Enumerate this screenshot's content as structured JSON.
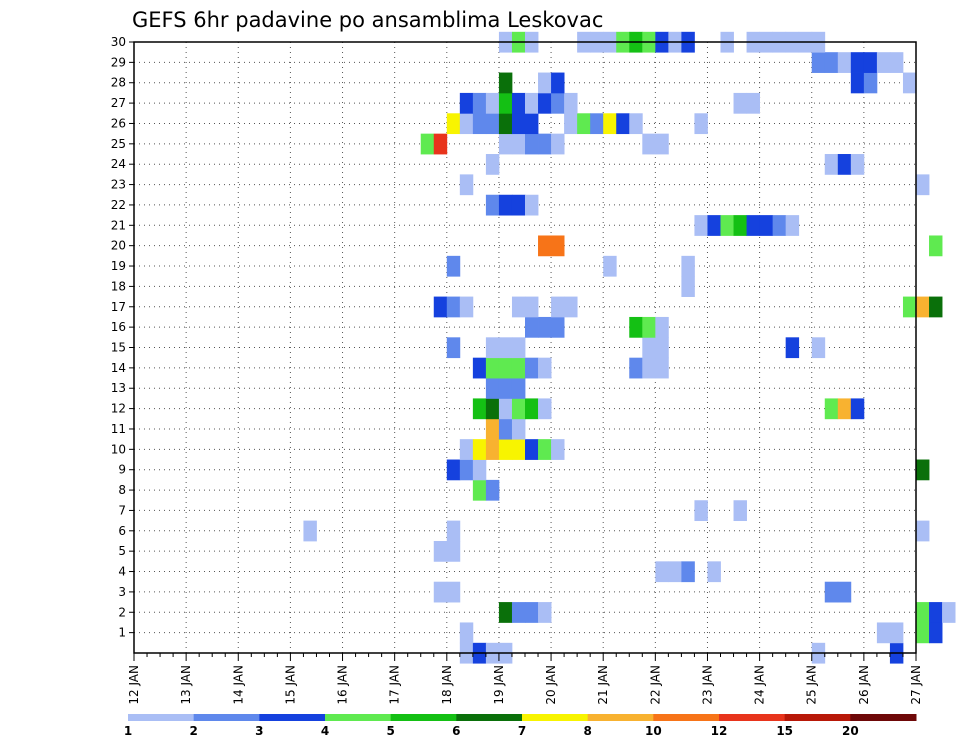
{
  "chart_data": {
    "type": "heatmap",
    "title": "GEFS 6hr padavine po ansamblima Leskovac",
    "xlabel": "",
    "ylabel": "",
    "x_ticks": [
      "12 JAN",
      "13 JAN",
      "14 JAN",
      "15 JAN",
      "16 JAN",
      "17 JAN",
      "18 JAN",
      "19 JAN",
      "20 JAN",
      "21 JAN",
      "22 JAN",
      "23 JAN",
      "24 JAN",
      "25 JAN",
      "26 JAN",
      "27 JAN"
    ],
    "y_ticks": [
      1,
      2,
      3,
      4,
      5,
      6,
      7,
      8,
      9,
      10,
      11,
      12,
      13,
      14,
      15,
      16,
      17,
      18,
      19,
      20,
      21,
      22,
      23,
      24,
      25,
      26,
      27,
      28,
      29,
      30
    ],
    "x_range_days": [
      0,
      15
    ],
    "y_range": [
      0,
      30
    ],
    "step_hours": 6,
    "grid": true,
    "legend": {
      "position": "bottom",
      "labels": [
        "1",
        "2",
        "3",
        "4",
        "5",
        "6",
        "7",
        "8",
        "10",
        "12",
        "15",
        "20"
      ],
      "colors": [
        "#aabef5",
        "#5f88ec",
        "#1541de",
        "#5fea50",
        "#14c014",
        "#0a700a",
        "#f8f400",
        "#f8b230",
        "#f77418",
        "#e8341c",
        "#b81808",
        "#6e0808"
      ]
    },
    "color_classes": [
      "#aabef5",
      "#5f88ec",
      "#1541de",
      "#5fea50",
      "#14c014",
      "#0a700a",
      "#f8f400",
      "#f8b230",
      "#f77418",
      "#e8341c",
      "#b81808",
      "#6e0808"
    ],
    "cell_format": "[member, first 6-hourly step index from 12 JAN 00Z, class index per consecutive step]",
    "cells": [
      [
        0,
        25,
        [
          0
        ]
      ],
      [
        0,
        26,
        [
          2
        ]
      ],
      [
        0,
        27,
        [
          0,
          0
        ]
      ],
      [
        0,
        52,
        [
          0
        ]
      ],
      [
        0,
        58,
        [
          2
        ]
      ],
      [
        1,
        25,
        [
          0
        ]
      ],
      [
        1,
        57,
        [
          0,
          0
        ]
      ],
      [
        1,
        60,
        [
          3,
          2
        ]
      ],
      [
        2,
        28,
        [
          5,
          1,
          1,
          0
        ]
      ],
      [
        2,
        60,
        [
          3,
          2,
          0
        ]
      ],
      [
        3,
        23,
        [
          0,
          0
        ]
      ],
      [
        3,
        53,
        [
          1,
          1
        ]
      ],
      [
        4,
        40,
        [
          0,
          0
        ]
      ],
      [
        4,
        42,
        [
          1
        ]
      ],
      [
        4,
        44,
        [
          0
        ]
      ],
      [
        5,
        23,
        [
          0,
          0
        ]
      ],
      [
        6,
        13,
        [
          0
        ]
      ],
      [
        6,
        24,
        [
          0
        ]
      ],
      [
        6,
        60,
        [
          0
        ]
      ],
      [
        7,
        43,
        [
          0
        ]
      ],
      [
        7,
        46,
        [
          0
        ]
      ],
      [
        8,
        26,
        [
          3,
          1
        ]
      ],
      [
        9,
        24,
        [
          2,
          1,
          0
        ]
      ],
      [
        9,
        60,
        [
          5
        ]
      ],
      [
        10,
        25,
        [
          0,
          6,
          7,
          6,
          6,
          2,
          3,
          0
        ]
      ],
      [
        11,
        27,
        [
          7,
          1,
          0
        ]
      ],
      [
        12,
        26,
        [
          4,
          5,
          0,
          3,
          4,
          0
        ]
      ],
      [
        12,
        53,
        [
          3,
          7,
          2
        ]
      ],
      [
        13,
        27,
        [
          1,
          1,
          1
        ]
      ],
      [
        14,
        26,
        [
          2,
          3,
          3,
          3,
          1,
          0
        ]
      ],
      [
        14,
        38,
        [
          1,
          0,
          0
        ]
      ],
      [
        15,
        24,
        [
          1
        ]
      ],
      [
        15,
        27,
        [
          0,
          0,
          0
        ]
      ],
      [
        15,
        39,
        [
          0,
          0
        ]
      ],
      [
        15,
        50,
        [
          2
        ]
      ],
      [
        15,
        52,
        [
          0
        ]
      ],
      [
        16,
        30,
        [
          1,
          1,
          1
        ]
      ],
      [
        16,
        38,
        [
          4,
          3,
          0
        ]
      ],
      [
        17,
        23,
        [
          2,
          1,
          0
        ]
      ],
      [
        17,
        29,
        [
          0,
          0
        ]
      ],
      [
        17,
        32,
        [
          0,
          0
        ]
      ],
      [
        17,
        59,
        [
          3,
          7,
          5
        ]
      ],
      [
        18,
        42,
        [
          0
        ]
      ],
      [
        19,
        24,
        [
          1
        ]
      ],
      [
        19,
        36,
        [
          0
        ]
      ],
      [
        19,
        42,
        [
          0
        ]
      ],
      [
        20,
        31,
        [
          8,
          8
        ]
      ],
      [
        20,
        61,
        [
          3
        ]
      ],
      [
        21,
        43,
        [
          0,
          2,
          3,
          4,
          2,
          2,
          1,
          0
        ]
      ],
      [
        22,
        27,
        [
          1,
          2,
          2,
          0
        ]
      ],
      [
        23,
        25,
        [
          0
        ]
      ],
      [
        23,
        60,
        [
          0
        ]
      ],
      [
        24,
        27,
        [
          0
        ]
      ],
      [
        24,
        53,
        [
          0,
          2,
          0
        ]
      ],
      [
        25,
        22,
        [
          3,
          9
        ]
      ],
      [
        25,
        28,
        [
          0,
          0,
          1,
          1,
          0
        ]
      ],
      [
        25,
        39,
        [
          0,
          0
        ]
      ],
      [
        26,
        24,
        [
          6,
          0,
          1,
          1,
          5,
          2,
          2
        ]
      ],
      [
        26,
        33,
        [
          0,
          3,
          1,
          6,
          2,
          0
        ]
      ],
      [
        26,
        43,
        [
          0
        ]
      ],
      [
        27,
        25,
        [
          2,
          1,
          0,
          4,
          2,
          0,
          2,
          1,
          0
        ]
      ],
      [
        27,
        46,
        [
          0,
          0
        ]
      ],
      [
        28,
        28,
        [
          5
        ]
      ],
      [
        28,
        31,
        [
          0,
          2
        ]
      ],
      [
        28,
        55,
        [
          2,
          1
        ]
      ],
      [
        28,
        59,
        [
          0
        ]
      ],
      [
        29,
        52,
        [
          1,
          1,
          0,
          2,
          2,
          0,
          0
        ]
      ],
      [
        30,
        28,
        [
          0,
          3,
          0
        ]
      ],
      [
        30,
        34,
        [
          0,
          0,
          0,
          3,
          4,
          3,
          2,
          0,
          2
        ]
      ],
      [
        30,
        45,
        [
          0
        ]
      ],
      [
        30,
        47,
        [
          0,
          0,
          0,
          0,
          0,
          0
        ]
      ]
    ]
  }
}
